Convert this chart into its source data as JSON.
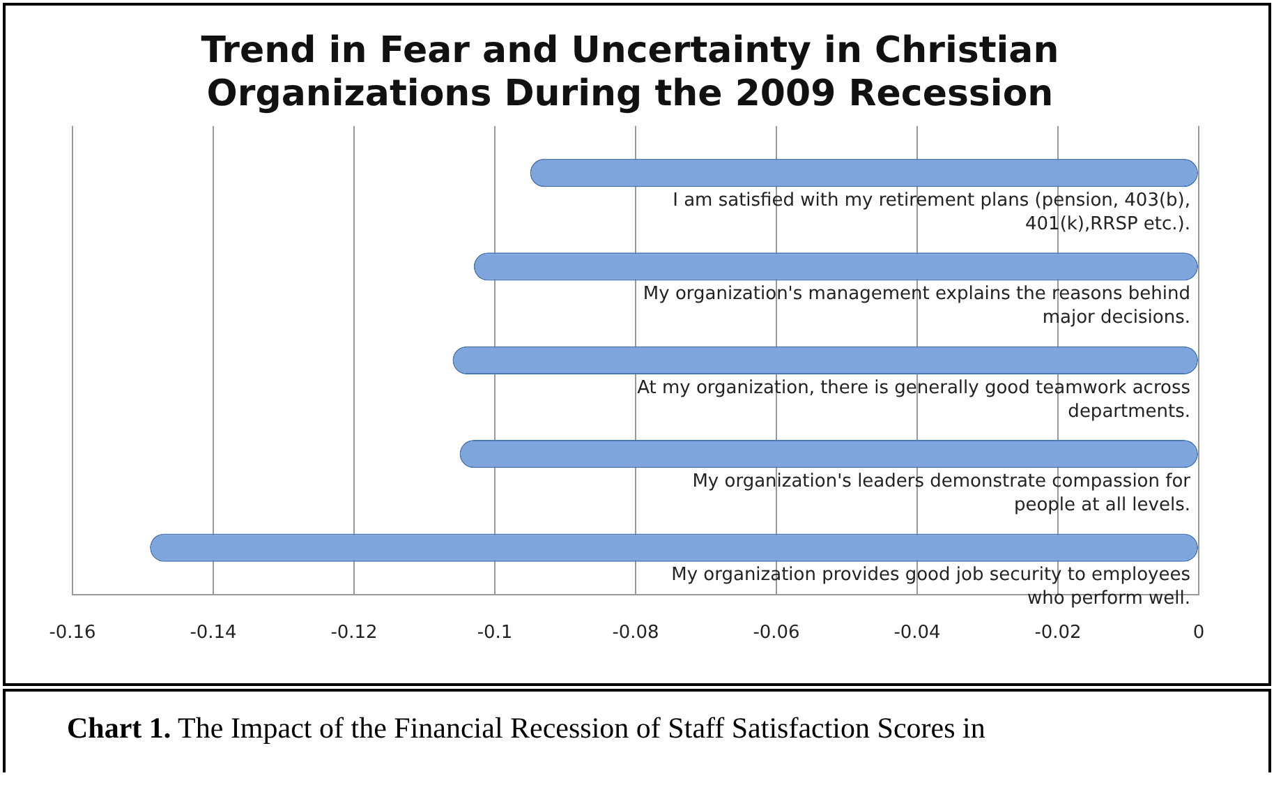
{
  "chart_data": {
    "type": "bar",
    "orientation": "horizontal",
    "title": "Trend in Fear and Uncertainty in Christian Organizations During the 2009 Recession",
    "categories": [
      "I am satisfied with my retirement plans (pension, 403(b), 401(k),RRSP etc.).",
      "My organization's management explains the reasons behind major decisions.",
      "At my organization, there is generally good teamwork across departments.",
      "My organization's leaders demonstrate compassion for people at all levels.",
      "My organization provides good job security to employees who perform well."
    ],
    "values": [
      -0.095,
      -0.103,
      -0.106,
      -0.105,
      -0.149
    ],
    "color": "#7ea6dc",
    "xlim": [
      -0.16,
      0
    ],
    "xticks": [
      -0.16,
      -0.14,
      -0.12,
      -0.1,
      -0.08,
      -0.06,
      -0.04,
      -0.02,
      0
    ],
    "grid": "x",
    "annotations": [
      "Chart 1. The Impact of the Financial Recession of Staff Satisfaction Scores in"
    ]
  }
}
